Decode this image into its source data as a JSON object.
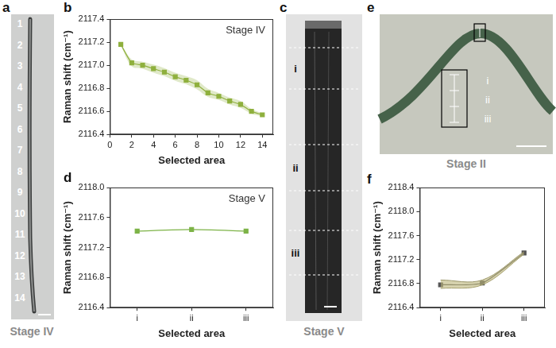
{
  "chart_data": [
    {
      "panel": "b",
      "type": "line",
      "title": "Stage IV",
      "x_label": "Selected area",
      "y_label": "Raman shift (cm⁻¹)",
      "x": [
        1,
        2,
        3,
        4,
        5,
        6,
        7,
        8,
        9,
        10,
        11,
        12,
        13,
        14
      ],
      "values": [
        2117.18,
        2117.02,
        2117.0,
        2116.97,
        2116.94,
        2116.9,
        2116.87,
        2116.83,
        2116.76,
        2116.73,
        2116.69,
        2116.66,
        2116.6,
        2116.57
      ],
      "errors": [
        0.01,
        0.03,
        0.03,
        0.035,
        0.035,
        0.035,
        0.035,
        0.04,
        0.035,
        0.03,
        0.03,
        0.03,
        0.02,
        0.015
      ],
      "color": "#8fb03e",
      "marker": "square",
      "xlim": [
        0,
        15
      ],
      "xticks": [
        0,
        2,
        4,
        6,
        8,
        10,
        12,
        14
      ],
      "ylim": [
        2116.4,
        2117.4
      ],
      "yticks": [
        2116.4,
        2116.6,
        2116.8,
        {
          "value": 2117,
          "label": "2117.0"
        },
        2117.2,
        2117.4
      ],
      "grid": false
    },
    {
      "panel": "d",
      "type": "line",
      "title": "Stage V",
      "x_label": "Selected area",
      "y_label": "Raman shift (cm⁻¹)",
      "categories": [
        "i",
        "ii",
        "iii"
      ],
      "values": [
        2117.42,
        2117.44,
        2117.42
      ],
      "color": "#7db347",
      "marker": "square",
      "ylim": [
        2116.4,
        2118
      ],
      "yticks": [
        2116.4,
        2116.8,
        2117.2,
        2117.6,
        {
          "value": 2118,
          "label": "2118.0"
        }
      ],
      "grid": false
    },
    {
      "panel": "f",
      "type": "line",
      "x_label": "Selected area",
      "y_label": "Raman shift (cm⁻¹)",
      "categories": [
        "i",
        "ii",
        "iii"
      ],
      "values": [
        2116.78,
        2116.81,
        2117.31
      ],
      "lower": [
        2116.72,
        2116.78,
        2117.29
      ],
      "upper": [
        2116.86,
        2116.86,
        2117.33
      ],
      "color": "#555555",
      "marker": "square",
      "ylim": [
        2116.4,
        2118.4
      ],
      "yticks": [
        2116.4,
        2116.8,
        2117.2,
        2117.6,
        {
          "value": 2118,
          "label": "2118.0"
        },
        2118.4
      ],
      "grid": false
    }
  ],
  "images": [
    {
      "panel": "a",
      "caption": "Stage IV",
      "labels": [
        "1",
        "2",
        "3",
        "4",
        "5",
        "6",
        "7",
        "8",
        "9",
        "10",
        "11",
        "12",
        "13",
        "14"
      ]
    },
    {
      "panel": "c",
      "caption": "Stage V",
      "labels": [
        "i",
        "ii",
        "iii"
      ]
    },
    {
      "panel": "e",
      "caption": "Stage II",
      "labels": [
        "i",
        "ii",
        "iii"
      ]
    }
  ]
}
